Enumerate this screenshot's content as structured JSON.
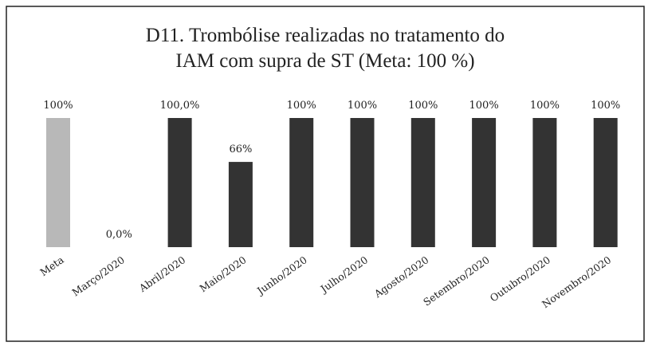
{
  "chart_data": {
    "type": "bar",
    "title": [
      "D11. Trombólise realizadas no tratamento do",
      "IAM com supra de ST  (Meta:  100 %)"
    ],
    "categories": [
      "Meta",
      "Março/2020",
      "Abril/2020",
      "Maio/2020",
      "Junho/2020",
      "Julho/2020",
      "Agosto/2020",
      "Setembro/2020",
      "Outubro/2020",
      "Novembro/2020"
    ],
    "values": [
      100,
      0,
      100,
      66,
      100,
      100,
      100,
      100,
      100,
      100
    ],
    "value_labels": [
      "100%",
      "0,0%",
      "100,0%",
      "66%",
      "100%",
      "100%",
      "100%",
      "100%",
      "100%",
      "100%"
    ],
    "colors": [
      "#b8b8b8",
      "#333333",
      "#333333",
      "#333333",
      "#333333",
      "#333333",
      "#333333",
      "#333333",
      "#333333",
      "#333333"
    ]
  }
}
